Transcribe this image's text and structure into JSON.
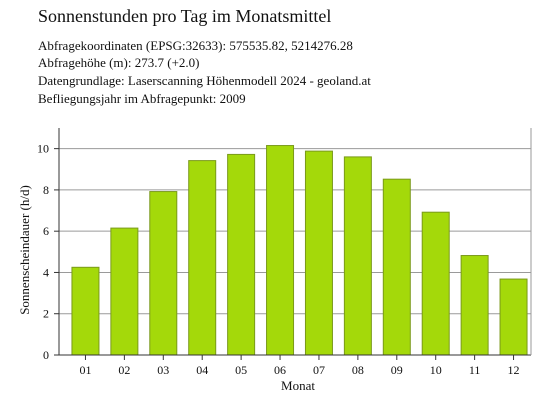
{
  "header": {
    "title": "Sonnenstunden pro Tag im Monatsmittel",
    "lines": [
      "Abfragekoordinaten (EPSG:32633): 575535.82, 5214276.28",
      "Abfragehöhe (m): 273.7 (+2.0)",
      "Datengrundlage: Laserscanning Höhenmodell 2024 - geoland.at",
      "Befliegungsjahr im Abfragepunkt: 2009"
    ]
  },
  "chart_data": {
    "type": "bar",
    "title": "Sonnenstunden pro Tag im Monatsmittel",
    "xlabel": "Monat",
    "ylabel": "Sonnenscheindauer (h/d)",
    "categories": [
      "01",
      "02",
      "03",
      "04",
      "05",
      "06",
      "07",
      "08",
      "09",
      "10",
      "11",
      "12"
    ],
    "values": [
      4.25,
      6.15,
      7.92,
      9.42,
      9.72,
      10.15,
      9.88,
      9.6,
      8.52,
      6.92,
      4.82,
      3.68
    ],
    "ylim": [
      0,
      11
    ],
    "yticks": [
      0,
      2,
      4,
      6,
      8,
      10
    ],
    "grid": true,
    "bar_color": "#a4d90a",
    "bar_edge_color": "#7a9a1a"
  }
}
